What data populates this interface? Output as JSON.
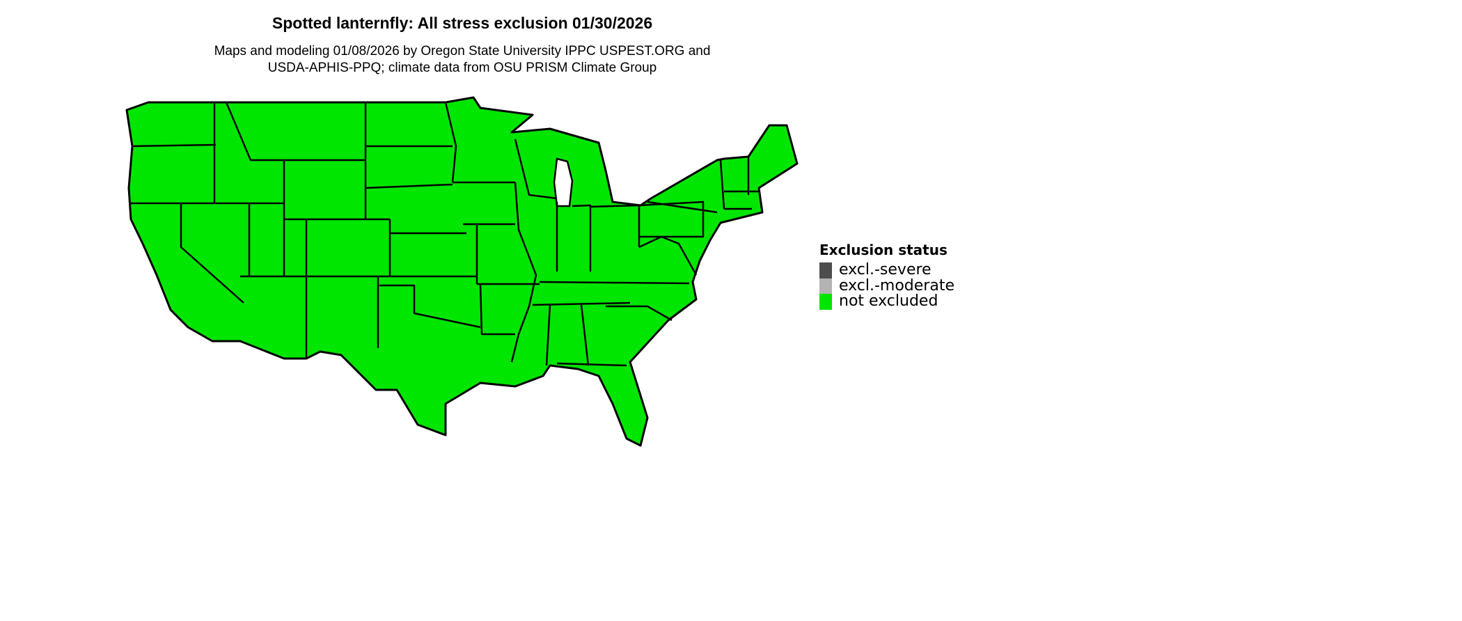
{
  "title": "Spotted lanternfly: All stress exclusion 01/30/2026",
  "subtitle_lines": [
    "Maps and modeling 01/08/2026 by Oregon State University IPPC USPEST.ORG and",
    "USDA-APHIS-PPQ; climate data from OSU PRISM Climate Group"
  ],
  "map": {
    "region": "Contiguous United States",
    "fill_status": "not excluded",
    "fill_color": "#00E600",
    "border_color": "#000000"
  },
  "legend": {
    "title": "Exclusion status",
    "items": [
      {
        "label": "excl.-severe",
        "color": "#4D4D4D"
      },
      {
        "label": "excl.-moderate",
        "color": "#B3B3B3"
      },
      {
        "label": "not excluded",
        "color": "#00E600"
      }
    ]
  }
}
